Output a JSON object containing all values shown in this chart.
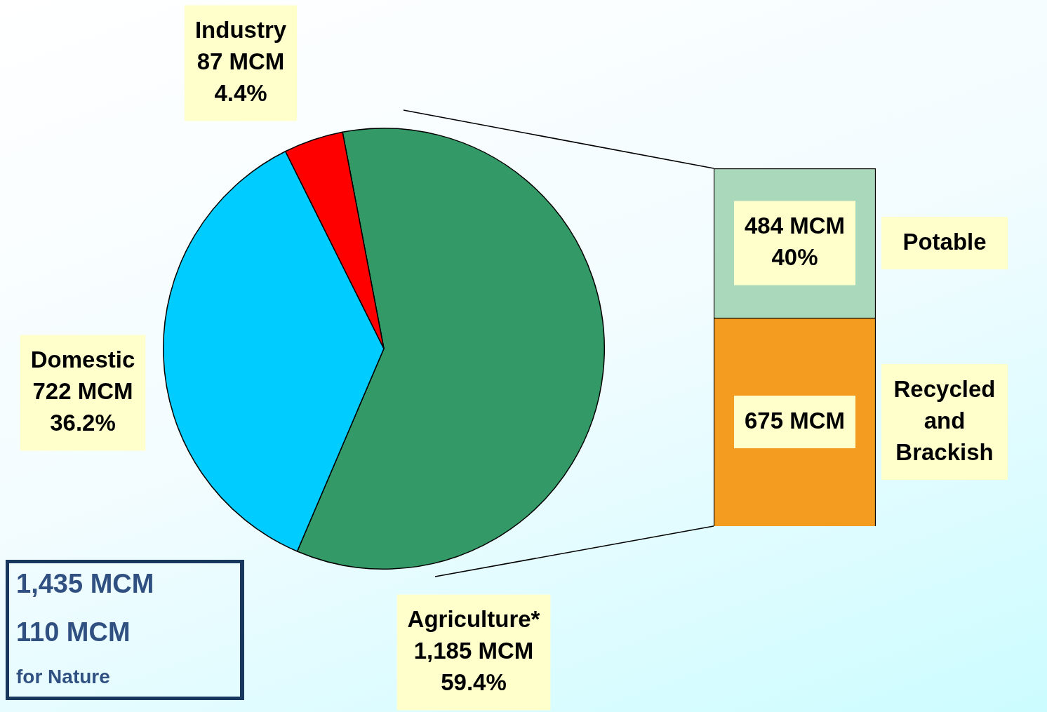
{
  "chart_data": [
    {
      "type": "pie",
      "categories": [
        "Agriculture*",
        "Domestic",
        "Industry"
      ],
      "values": [
        1185,
        722,
        87
      ],
      "colors": [
        "#339966",
        "#00ccff",
        "#ff0000"
      ],
      "value_labels": [
        "1,185 MCM\n59.4%",
        "722 MCM\n36.2%",
        "87 MCM\n4.4%"
      ],
      "legend": false,
      "annotations": [
        "1,435 MCM",
        "110 MCM",
        "for Nature"
      ]
    },
    {
      "type": "bar",
      "stacked": true,
      "categories": [
        null
      ],
      "legend": false,
      "series": [
        {
          "name": "Recycled\nand\nBrackish",
          "color": "#f39c1f",
          "values": [
            675
          ],
          "value_labels": [
            "675 MCM"
          ]
        },
        {
          "name": "Potable",
          "color": "#a9d8bb",
          "values": [
            484
          ],
          "value_labels": [
            "484 MCM\n40%"
          ]
        }
      ]
    }
  ]
}
